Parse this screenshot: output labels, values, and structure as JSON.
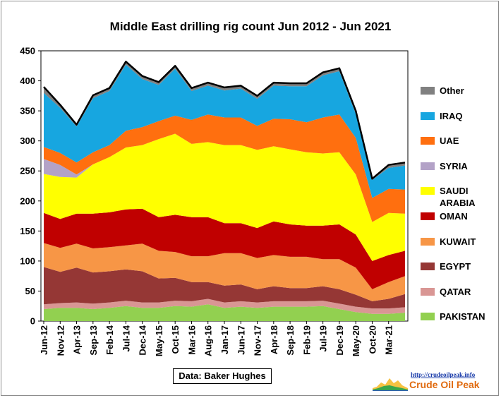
{
  "chart_data": {
    "type": "area",
    "title": "Middle East drilling rig count Jun 2012 - Jun 2021",
    "xlabel": "",
    "ylabel": "",
    "ylim": [
      0,
      450
    ],
    "yticks": [
      0,
      50,
      100,
      150,
      200,
      250,
      300,
      350,
      400,
      450
    ],
    "x": [
      "Jun-12",
      "Nov-12",
      "Apr-13",
      "Sep-13",
      "Feb-14",
      "Jul-14",
      "Dec-14",
      "May-15",
      "Oct-15",
      "Mar-16",
      "Aug-16",
      "Jan-17",
      "Jun-17",
      "Nov-17",
      "Apr-18",
      "Sep-18",
      "Feb-19",
      "Jul-19",
      "Dec-19",
      "May-20",
      "Oct-20",
      "Mar-21",
      "Jun-21"
    ],
    "x_tick_labels": [
      "Jun-12",
      "Nov-12",
      "Apr-13",
      "Sep-13",
      "Feb-14",
      "Jul-14",
      "Dec-14",
      "May-15",
      "Oct-15",
      "Mar-16",
      "Aug-16",
      "Jan-17",
      "Jun-17",
      "Nov-17",
      "Apr-18",
      "Sep-18",
      "Feb-19",
      "Jul-19",
      "Dec-19",
      "May-20",
      "Oct-20",
      "Mar-21"
    ],
    "grid": false,
    "legend_position": "right",
    "stacked": true,
    "series": [
      {
        "name": "PAKISTAN",
        "color": "#92d050",
        "values": [
          20,
          22,
          22,
          20,
          22,
          25,
          22,
          22,
          25,
          24,
          28,
          22,
          24,
          22,
          24,
          24,
          24,
          25,
          20,
          15,
          12,
          12,
          14
        ]
      },
      {
        "name": "QATAR",
        "color": "#d99694",
        "values": [
          8,
          8,
          9,
          9,
          9,
          9,
          9,
          9,
          9,
          9,
          9,
          9,
          9,
          9,
          9,
          9,
          9,
          9,
          9,
          9,
          9,
          9,
          9
        ]
      },
      {
        "name": "EGYPT",
        "color": "#953735",
        "values": [
          62,
          52,
          58,
          52,
          52,
          52,
          52,
          40,
          38,
          32,
          28,
          28,
          28,
          22,
          25,
          22,
          22,
          24,
          24,
          20,
          12,
          16,
          22
        ]
      },
      {
        "name": "KUWAIT",
        "color": "#f79646",
        "values": [
          40,
          40,
          40,
          40,
          40,
          40,
          46,
          46,
          43,
          43,
          43,
          54,
          52,
          52,
          52,
          52,
          52,
          45,
          50,
          45,
          20,
          28,
          30
        ]
      },
      {
        "name": "OMAN",
        "color": "#c00000",
        "values": [
          50,
          48,
          50,
          58,
          58,
          60,
          58,
          56,
          62,
          65,
          65,
          50,
          50,
          50,
          56,
          54,
          52,
          56,
          58,
          55,
          47,
          45,
          42
        ]
      },
      {
        "name": "SAUDI ARABIA",
        "color": "#ffff00",
        "values": [
          65,
          70,
          60,
          82,
          92,
          103,
          106,
          130,
          135,
          122,
          125,
          130,
          130,
          130,
          125,
          125,
          122,
          120,
          120,
          100,
          65,
          70,
          62
        ]
      },
      {
        "name": "SYRIA",
        "color": "#b3a2c7",
        "values": [
          25,
          20,
          5,
          0,
          0,
          0,
          0,
          0,
          0,
          0,
          0,
          0,
          0,
          0,
          0,
          0,
          0,
          0,
          0,
          0,
          0,
          0,
          0
        ]
      },
      {
        "name": "UAE",
        "color": "#ff6f0f",
        "values": [
          20,
          20,
          20,
          20,
          20,
          28,
          30,
          30,
          30,
          40,
          46,
          46,
          46,
          40,
          46,
          50,
          50,
          60,
          63,
          61,
          40,
          40,
          40
        ]
      },
      {
        "name": "IRAQ",
        "color": "#17a6e0",
        "values": [
          90,
          75,
          60,
          90,
          90,
          110,
          80,
          60,
          78,
          48,
          48,
          45,
          48,
          45,
          55,
          55,
          60,
          70,
          72,
          40,
          30,
          35,
          40
        ]
      },
      {
        "name": "Other",
        "color": "#808080",
        "values": [
          10,
          5,
          3,
          5,
          5,
          5,
          5,
          5,
          5,
          5,
          5,
          5,
          5,
          5,
          5,
          5,
          5,
          5,
          5,
          5,
          2,
          5,
          5
        ]
      }
    ],
    "annotations": [
      "Data: Baker Hughes"
    ]
  },
  "branding": {
    "url": "http://crudeoilpeak.info",
    "name": "Crude Oil Peak"
  }
}
